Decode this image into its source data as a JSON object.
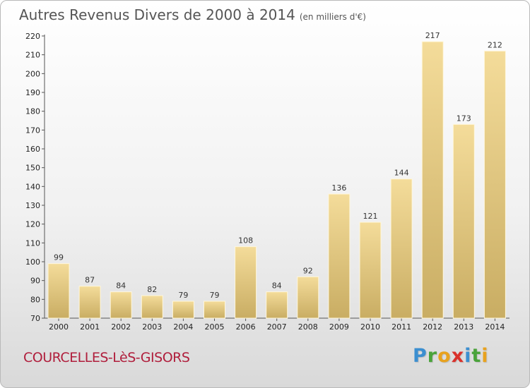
{
  "title": {
    "main": "Autres Revenus Divers de 2000 à 2014",
    "unit": "(en milliers d'€)"
  },
  "commune": "COURCELLES-LèS-GISORS",
  "logo": {
    "letters": [
      {
        "ch": "P",
        "color": "#3c8fd0"
      },
      {
        "ch": "r",
        "color": "#4aa33a"
      },
      {
        "ch": "o",
        "color": "#e8a21e"
      },
      {
        "ch": "x",
        "color": "#d9312b"
      },
      {
        "ch": "i",
        "color": "#3c8fd0"
      },
      {
        "ch": "t",
        "color": "#4aa33a"
      },
      {
        "ch": "i",
        "color": "#e8a21e"
      }
    ]
  },
  "chart_data": {
    "type": "bar",
    "title": "Autres Revenus Divers de 2000 à 2014",
    "subtitle": "(en milliers d'€)",
    "xlabel": "",
    "ylabel": "",
    "ylim": [
      70,
      220
    ],
    "yticks": [
      70,
      80,
      90,
      100,
      110,
      120,
      130,
      140,
      150,
      160,
      170,
      180,
      190,
      200,
      210,
      220
    ],
    "grid": false,
    "categories": [
      "2000",
      "2001",
      "2002",
      "2003",
      "2004",
      "2005",
      "2006",
      "2007",
      "2008",
      "2009",
      "2010",
      "2011",
      "2012",
      "2013",
      "2014"
    ],
    "values": [
      99,
      87,
      84,
      82,
      79,
      79,
      108,
      84,
      92,
      136,
      121,
      144,
      217,
      173,
      212
    ],
    "bar_color_top": "#f4dc9a",
    "bar_color_bottom": "#c9ad63"
  }
}
